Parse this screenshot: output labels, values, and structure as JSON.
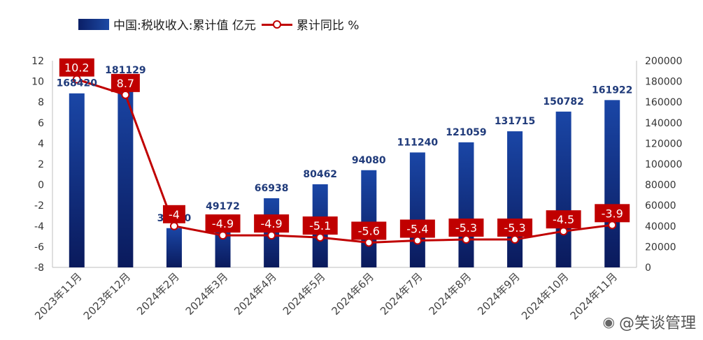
{
  "legend": {
    "bar_label": "中国:税收收入:累计值 亿元",
    "line_label": "累计同比 %"
  },
  "watermark": {
    "text": "@笑谈管理"
  },
  "colors": {
    "bar": "#0f2a7a",
    "line": "#c00000",
    "label_box": "#c00000"
  },
  "chart_data": {
    "type": "bar",
    "categories": [
      "2023年11月",
      "2023年12月",
      "2024年2月",
      "2024年3月",
      "2024年4月",
      "2024年5月",
      "2024年6月",
      "2024年7月",
      "2024年8月",
      "2024年9月",
      "2024年10月",
      "2024年11月"
    ],
    "series": [
      {
        "name": "中国:税收收入:累计值 亿元",
        "type": "bar",
        "axis": "right",
        "values": [
          168420,
          181129,
          38000,
          49172,
          66938,
          80462,
          94080,
          111240,
          121059,
          131715,
          150782,
          161922
        ],
        "labels": [
          "168420",
          "181129",
          "38000",
          "49172",
          "66938",
          "80462",
          "94080",
          "111240",
          "121059",
          "131715",
          "150782",
          "161922"
        ]
      },
      {
        "name": "累计同比 %",
        "type": "line",
        "axis": "left",
        "values": [
          10.2,
          8.7,
          -4,
          -4.9,
          -4.9,
          -5.1,
          -5.6,
          -5.4,
          -5.3,
          -5.3,
          -4.5,
          -3.9
        ],
        "labels": [
          "10.2",
          "8.7",
          "-4",
          "-4.9",
          "-4.9",
          "-5.1",
          "-5.6",
          "-5.4",
          "-5.3",
          "-5.3",
          "-4.5",
          "-3.9"
        ]
      }
    ],
    "y_left": {
      "lim": [
        -8,
        12
      ],
      "ticks": [
        "12",
        "10",
        "8",
        "6",
        "4",
        "2",
        "0",
        "-2",
        "-4",
        "-6",
        "-8"
      ]
    },
    "y_right": {
      "lim": [
        0,
        200000
      ],
      "ticks": [
        "200000",
        "180000",
        "160000",
        "140000",
        "120000",
        "100000",
        "80000",
        "60000",
        "40000",
        "20000",
        "0"
      ]
    },
    "grid": false,
    "legend_position": "top-left"
  }
}
